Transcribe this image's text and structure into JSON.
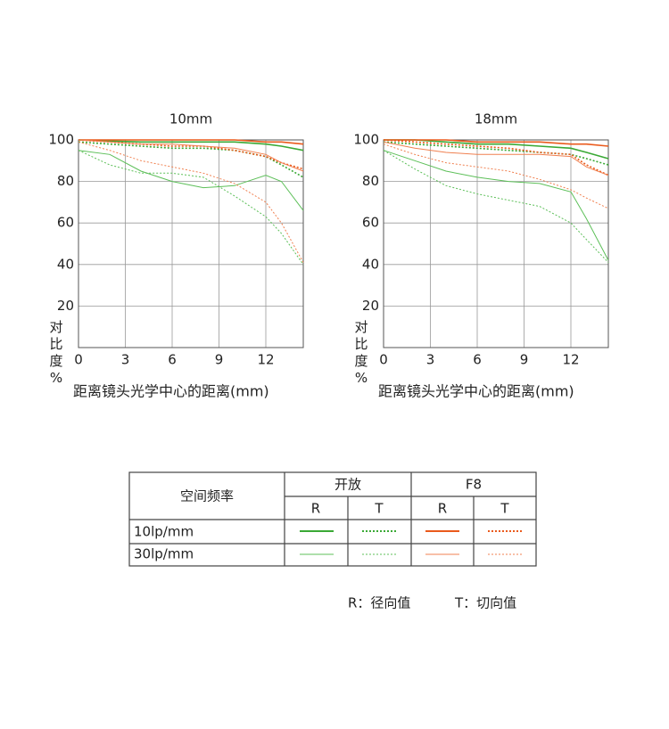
{
  "chart_data": [
    {
      "type": "line",
      "title": "10mm",
      "y_label": "对比度%",
      "x_label": "距离镜头光学中心的距离(mm)",
      "x": [
        0,
        2,
        4,
        6,
        8,
        10,
        12,
        13,
        14.4
      ],
      "xlim": [
        0,
        14.4
      ],
      "xticks": [
        0,
        3,
        6,
        9,
        12
      ],
      "ylim": [
        0,
        100
      ],
      "yticks": [
        20,
        40,
        60,
        80,
        100
      ],
      "grid": true,
      "series": [
        {
          "color": "#3aa935",
          "dash": false,
          "width": 1.6,
          "values": [
            100,
            99.5,
            99,
            99,
            99,
            99,
            98,
            97,
            95
          ]
        },
        {
          "color": "#3aa935",
          "dash": true,
          "width": 1.6,
          "values": [
            99,
            98,
            97,
            96,
            96,
            95,
            92,
            88,
            82
          ]
        },
        {
          "color": "#5cbf58",
          "dash": false,
          "width": 1,
          "values": [
            95,
            93,
            85,
            80,
            77,
            78,
            83,
            80,
            66
          ]
        },
        {
          "color": "#5cbf58",
          "dash": true,
          "width": 1,
          "values": [
            95,
            88,
            84,
            84,
            82,
            73,
            63,
            55,
            40
          ]
        },
        {
          "color": "#ea5a1c",
          "dash": false,
          "width": 1.6,
          "values": [
            100,
            100,
            100,
            100,
            100,
            100,
            99,
            99,
            98
          ]
        },
        {
          "color": "#ea5a1c",
          "dash": true,
          "width": 1.6,
          "values": [
            100,
            99,
            98,
            97,
            97,
            95,
            92,
            89,
            86
          ]
        },
        {
          "color": "#f08050",
          "dash": false,
          "width": 1,
          "values": [
            100,
            99,
            98,
            98,
            97,
            96,
            93,
            89,
            85
          ]
        },
        {
          "color": "#f08050",
          "dash": true,
          "width": 1,
          "values": [
            99,
            95,
            90,
            87,
            84,
            79,
            70,
            60,
            41
          ]
        }
      ]
    },
    {
      "type": "line",
      "title": "18mm",
      "y_label": "对比度%",
      "x_label": "距离镜头光学中心的距离(mm)",
      "x": [
        0,
        2,
        4,
        6,
        8,
        10,
        12,
        13,
        14.4
      ],
      "xlim": [
        0,
        14.4
      ],
      "xticks": [
        0,
        3,
        6,
        9,
        12
      ],
      "ylim": [
        0,
        100
      ],
      "yticks": [
        20,
        40,
        60,
        80,
        100
      ],
      "grid": true,
      "series": [
        {
          "color": "#3aa935",
          "dash": false,
          "width": 1.6,
          "values": [
            100,
            100,
            99,
            98,
            98,
            97,
            96,
            94,
            91
          ]
        },
        {
          "color": "#3aa935",
          "dash": true,
          "width": 1.6,
          "values": [
            99,
            98,
            97,
            96,
            95,
            94,
            93,
            91,
            88
          ]
        },
        {
          "color": "#5cbf58",
          "dash": false,
          "width": 1,
          "values": [
            95,
            90,
            85,
            82,
            80,
            79,
            75,
            62,
            42
          ]
        },
        {
          "color": "#5cbf58",
          "dash": true,
          "width": 1,
          "values": [
            95,
            86,
            78,
            74,
            71,
            68,
            60,
            52,
            41
          ]
        },
        {
          "color": "#ea5a1c",
          "dash": false,
          "width": 1.6,
          "values": [
            100,
            100,
            100,
            99,
            99,
            99,
            98,
            98,
            97
          ]
        },
        {
          "color": "#ea5a1c",
          "dash": true,
          "width": 1.6,
          "values": [
            100,
            99,
            98,
            97,
            96,
            94,
            93,
            88,
            83
          ]
        },
        {
          "color": "#f08050",
          "dash": false,
          "width": 1,
          "values": [
            99,
            96,
            94,
            93,
            93,
            93,
            92,
            87,
            83
          ]
        },
        {
          "color": "#f08050",
          "dash": true,
          "width": 1,
          "values": [
            98,
            93,
            89,
            87,
            85,
            81,
            76,
            72,
            67
          ]
        }
      ]
    }
  ],
  "legend_table": {
    "header": "空间频率",
    "groups": [
      "开放",
      "F8"
    ],
    "sub": [
      "R",
      "T",
      "R",
      "T"
    ],
    "rows": [
      "10lp/mm",
      "30lp/mm"
    ]
  },
  "note": {
    "r": "R：径向值",
    "t": "T：切向值"
  }
}
